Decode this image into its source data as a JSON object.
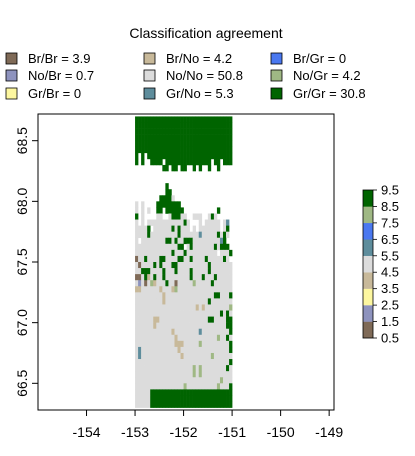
{
  "chart_data": {
    "type": "heatmap",
    "title": "Classification agreement",
    "legend_placement": "top",
    "legend": [
      {
        "label": "Br/Br = 3.9",
        "class": 1,
        "color": "#7f6a57"
      },
      {
        "label": "Br/No = 4.2",
        "class": 4,
        "color": "#c8b99a"
      },
      {
        "label": "Br/Gr = 0",
        "class": 7,
        "color": "#4a78f0"
      },
      {
        "label": "No/Br = 0.7",
        "class": 2,
        "color": "#8e93be"
      },
      {
        "label": "No/No = 50.8",
        "class": 5,
        "color": "#dcdcdc"
      },
      {
        "label": "No/Gr = 4.2",
        "class": 8,
        "color": "#9fb884"
      },
      {
        "label": "Gr/Br = 0",
        "class": 3,
        "color": "#fdf7a0"
      },
      {
        "label": "Gr/No = 5.3",
        "class": 6,
        "color": "#5e8d9c"
      },
      {
        "label": "Gr/Gr = 30.8",
        "class": 9,
        "color": "#006400"
      }
    ],
    "x_ticks": [
      "-154",
      "-153",
      "-152",
      "-151",
      "-150",
      "-149"
    ],
    "x_tick_values": [
      -154,
      -153,
      -152,
      -151,
      -150,
      -149
    ],
    "y_ticks": [
      "66.5",
      "67.0",
      "67.5",
      "68.0",
      "68.5"
    ],
    "y_tick_values": [
      66.5,
      67.0,
      67.5,
      68.0,
      68.5
    ],
    "xlim": [
      -155.0,
      -148.9
    ],
    "ylim": [
      66.28,
      68.72
    ],
    "grid": false,
    "colorbar": {
      "ticks": [
        "0.5",
        "1.5",
        "2.5",
        "3.5",
        "4.5",
        "5.5",
        "6.5",
        "7.5",
        "8.5",
        "9.5"
      ],
      "tick_values": [
        0.5,
        1.5,
        2.5,
        3.5,
        4.5,
        5.5,
        6.5,
        7.5,
        8.5,
        9.5
      ],
      "range": [
        0.5,
        9.5
      ]
    },
    "raster": {
      "x_start": -153.0,
      "x_end": -151.0,
      "y_start": 66.3,
      "y_end": 68.7,
      "cell_lon": 0.0625,
      "cell_lat": 0.05,
      "rows": [
        "99999999999999999999999999999999",
        "99999999999999999999999999999999",
        "99999999999999999999999999999999",
        "99999999999999999999999999999999",
        "99999999999999999999999999999999",
        "99999999999999999999999999999999",
        "9.9.9999999999999999999999999999",
        "9.9..9999.999999999999999.99.999",
        ".........99.99.99..9.9..9..9.....",
        "................................",
        "................................",
        "..........9.....................",
        "..........99....................",
        "........99995...................",
        "5.5....99999999.................",
        "5.5.5..99.999999...........9....",
        "9.5....55..599955..555..595.....",
        "5.5.55555555555595...5.55555.56.",
        "55559.555555959555.5.5555555.59.",
        "5555955555555595555556555559595.",
        "5.5555555599595599955555555569.",
        "5555555555555599.59555555595999.",
        "555555555555955595555555555.5559",
        "1559555599555599559555595555595.",
        "51555595955599555555555595555555",
        "55999555595559555595555595555555",
        "11594595595555555595559555955555",
        "52515845559551555558555559555555",
        "44555555455548555555555555555555",
        "55555555545555555555555555995559",
        "55555555545555555555555595555555",
        "55555555555555555555454555555558",
        "55555555555555555555555555559595",
        "55555544555555555555555599555599",
        "55555545555555555555555555555599",
        "55555555555545555555565555555559",
        "55555555555554555555555555585595",
        "55555555555554445555585555555559",
        "56555555555555455555555555555559",
        "56555555555555545555555558555555",
        "55555555555555555555555555555559",
        "55555555555555555558585555555595",
        "55555555555555555558585555555555",
        "55555555555555555555555555558555",
        "55555555555555558555555555585559",
        "55555999999999999999999999999999",
        "55555999999999999999999999999999",
        "55555999999999999999999999999999"
      ]
    }
  }
}
